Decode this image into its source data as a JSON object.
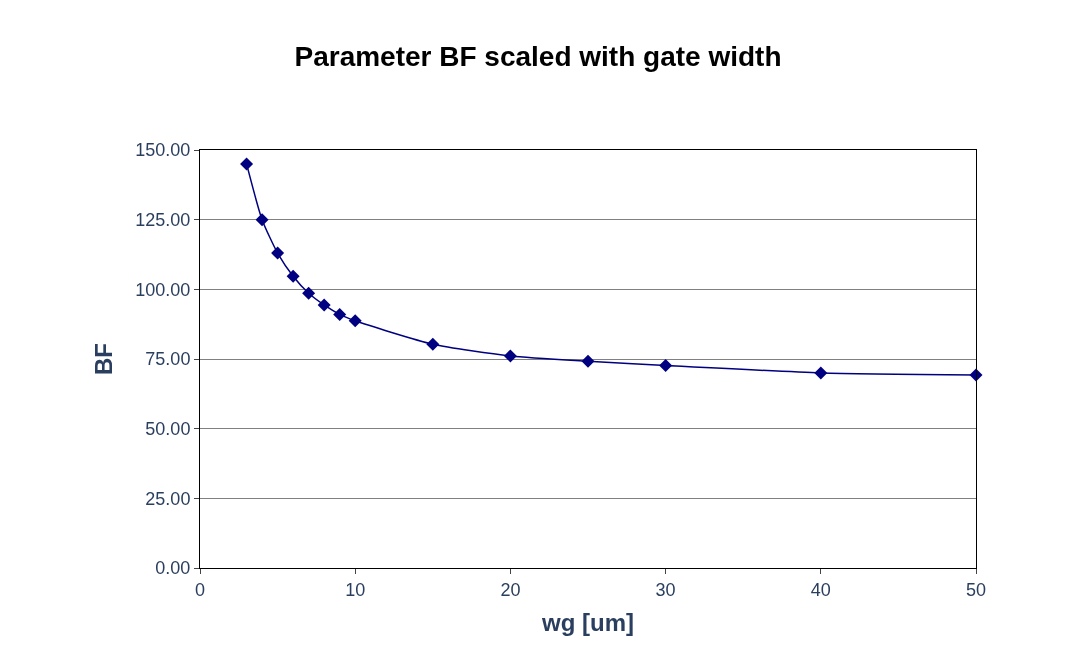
{
  "chart_data": {
    "type": "line",
    "title": "Parameter BF scaled with gate width",
    "xlabel": "wg [um]",
    "ylabel": "BF",
    "x": [
      3,
      4,
      5,
      6,
      7,
      8,
      9,
      10,
      15,
      20,
      25,
      30,
      40,
      50
    ],
    "series": [
      {
        "color": "#000080",
        "values": [
          145.0,
          125.0,
          113.0,
          104.7,
          98.6,
          94.4,
          91.0,
          88.7,
          80.3,
          76.1,
          74.2,
          72.7,
          70.0,
          69.3
        ]
      }
    ],
    "xlim": [
      0,
      50
    ],
    "xticks": [
      0,
      10,
      20,
      30,
      40,
      50
    ],
    "ylim": [
      0,
      150
    ],
    "yticks": [
      {
        "value": 0,
        "label": "0.00"
      },
      {
        "value": 25,
        "label": "25.00"
      },
      {
        "value": 50,
        "label": "50.00"
      },
      {
        "value": 75,
        "label": "75.00"
      },
      {
        "value": 100,
        "label": "100.00"
      },
      {
        "value": 125,
        "label": "125.00"
      },
      {
        "value": 150,
        "label": "150.00"
      }
    ],
    "grid": "y",
    "legend": false,
    "marker": "diamond",
    "line_style": "solid"
  }
}
